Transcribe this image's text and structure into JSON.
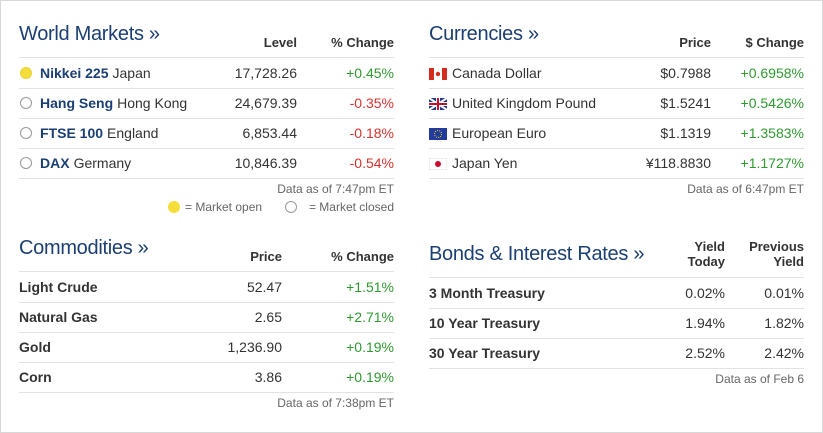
{
  "world_markets": {
    "title": "World Markets »",
    "columns": [
      "Level",
      "% Change"
    ],
    "rows": [
      {
        "name": "Nikkei 225",
        "country": "Japan",
        "values": [
          "17,728.26",
          "+0.45%"
        ]
      },
      {
        "name": "Hang Seng",
        "country": "Hong Kong",
        "values": [
          "24,679.39",
          "-0.35%"
        ]
      },
      {
        "name": "FTSE 100",
        "country": "England",
        "values": [
          "6,853.44",
          "-0.18%"
        ]
      },
      {
        "name": "DAX",
        "country": "Germany",
        "values": [
          "10,846.39",
          "-0.54%"
        ]
      }
    ],
    "note": "Data as of 7:47pm ET",
    "legend": {
      "open": "= Market open",
      "closed": "= Market closed"
    }
  },
  "currencies": {
    "title": "Currencies »",
    "columns": [
      "Price",
      "$ Change"
    ],
    "rows": [
      {
        "name": "Canada Dollar",
        "values": [
          "$0.7988",
          "+0.6958%"
        ]
      },
      {
        "name": "United Kingdom Pound",
        "values": [
          "$1.5241",
          "+0.5426%"
        ]
      },
      {
        "name": "European Euro",
        "values": [
          "$1.1319",
          "+1.3583%"
        ]
      },
      {
        "name": "Japan Yen",
        "values": [
          "¥118.8830",
          "+1.1727%"
        ]
      }
    ],
    "note": "Data as of 6:47pm ET"
  },
  "commodities": {
    "title": "Commodities »",
    "columns": [
      "Price",
      "% Change"
    ],
    "rows": [
      {
        "name": "Light Crude",
        "values": [
          "52.47",
          "+1.51%"
        ]
      },
      {
        "name": "Natural Gas",
        "values": [
          "2.65",
          "+2.71%"
        ]
      },
      {
        "name": "Gold",
        "values": [
          "1,236.90",
          "+0.19%"
        ]
      },
      {
        "name": "Corn",
        "values": [
          "3.86",
          "+0.19%"
        ]
      }
    ],
    "note": "Data as of 7:38pm ET"
  },
  "bonds": {
    "title": "Bonds & Interest Rates »",
    "columns": [
      "Yield Today",
      "Previous Yield"
    ],
    "rows": [
      {
        "name": "3 Month Treasury",
        "values": [
          "0.02%",
          "0.01%"
        ]
      },
      {
        "name": "10 Year Treasury",
        "values": [
          "1.94%",
          "1.82%"
        ]
      },
      {
        "name": "30 Year Treasury",
        "values": [
          "2.52%",
          "2.42%"
        ]
      }
    ],
    "note": "Data as of Feb 6"
  }
}
